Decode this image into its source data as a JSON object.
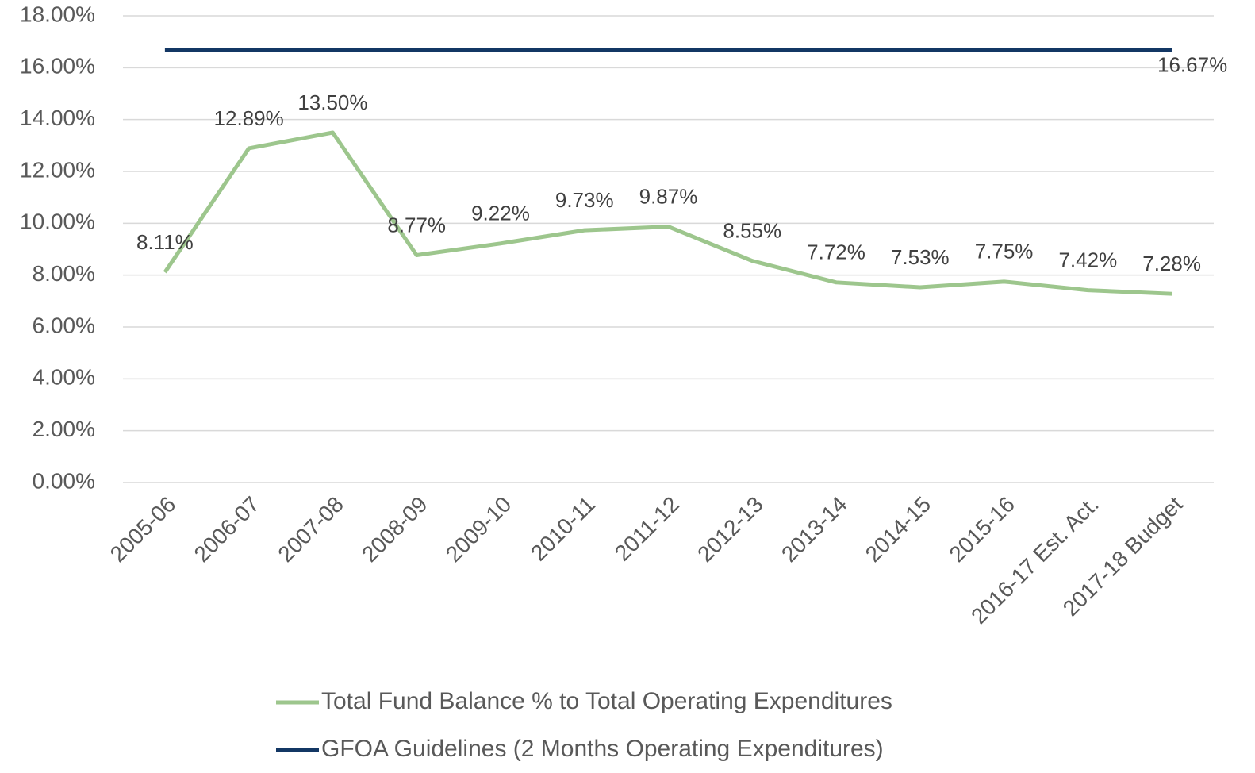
{
  "chart_data": {
    "type": "line",
    "categories": [
      "2005-06",
      "2006-07",
      "2007-08",
      "2008-09",
      "2009-10",
      "2010-11",
      "2011-12",
      "2012-13",
      "2013-14",
      "2014-15",
      "2015-16",
      "2016-17 Est. Act.",
      "2017-18 Budget"
    ],
    "series": [
      {
        "name": "Total Fund Balance % to Total Operating Expenditures",
        "color": "#9dc68d",
        "values": [
          8.11,
          12.89,
          13.5,
          8.77,
          9.22,
          9.73,
          9.87,
          8.55,
          7.72,
          7.53,
          7.75,
          7.42,
          7.28
        ],
        "value_labels": [
          "8.11%",
          "12.89%",
          "13.50%",
          "8.77%",
          "9.22%",
          "9.73%",
          "9.87%",
          "8.55%",
          "7.72%",
          "7.53%",
          "7.75%",
          "7.42%",
          "7.28%"
        ]
      },
      {
        "name": "GFOA Guidelines (2 Months Operating Expenditures)",
        "color": "#133764",
        "values": [
          16.67,
          16.67,
          16.67,
          16.67,
          16.67,
          16.67,
          16.67,
          16.67,
          16.67,
          16.67,
          16.67,
          16.67,
          16.67
        ],
        "value_labels": [
          null,
          null,
          null,
          null,
          null,
          null,
          null,
          null,
          null,
          null,
          null,
          null,
          "16.67%"
        ]
      }
    ],
    "ylim": [
      0,
      18
    ],
    "yticks": [
      {
        "value": 0,
        "label": "0.00%"
      },
      {
        "value": 2,
        "label": "2.00%"
      },
      {
        "value": 4,
        "label": "4.00%"
      },
      {
        "value": 6,
        "label": "6.00%"
      },
      {
        "value": 8,
        "label": "8.00%"
      },
      {
        "value": 10,
        "label": "10.00%"
      },
      {
        "value": 12,
        "label": "12.00%"
      },
      {
        "value": 14,
        "label": "14.00%"
      },
      {
        "value": 16,
        "label": "16.00%"
      },
      {
        "value": 18,
        "label": "18.00%"
      }
    ],
    "grid": true,
    "legend": "bottom"
  }
}
